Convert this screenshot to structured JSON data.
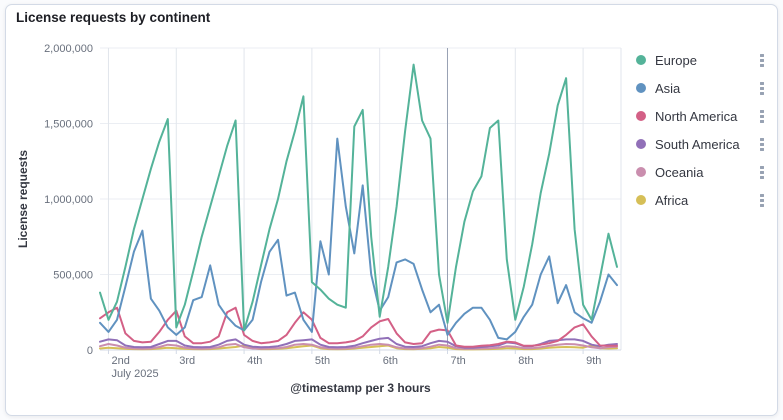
{
  "panel": {
    "title": "License requests by continent"
  },
  "chart_data": {
    "type": "line",
    "title": "License requests by continent",
    "xlabel": "@timestamp per 3 hours",
    "ylabel": "License requests",
    "ylim": [
      0,
      2000000
    ],
    "grid": true,
    "legend_position": "right",
    "bucket_interval": "3 hours",
    "y_ticks": [
      {
        "value": 0,
        "label": "0"
      },
      {
        "value": 500000,
        "label": "500,000"
      },
      {
        "value": 1000000,
        "label": "1,000,000"
      },
      {
        "value": 1500000,
        "label": "1,500,000"
      },
      {
        "value": 2000000,
        "label": "2,000,000"
      }
    ],
    "x_ticks": [
      {
        "index": 1,
        "label": "2nd",
        "sublabel": "July 2025",
        "emphasis": false
      },
      {
        "index": 9,
        "label": "3rd",
        "emphasis": false
      },
      {
        "index": 17,
        "label": "4th",
        "emphasis": false
      },
      {
        "index": 25,
        "label": "5th",
        "emphasis": false
      },
      {
        "index": 33,
        "label": "6th",
        "emphasis": false
      },
      {
        "index": 41,
        "label": "7th",
        "emphasis": true
      },
      {
        "index": 49,
        "label": "8th",
        "emphasis": false
      },
      {
        "index": 57,
        "label": "9th",
        "emphasis": false
      }
    ],
    "series": [
      {
        "name": "Europe",
        "color": "#54B399",
        "values": [
          380000,
          200000,
          320000,
          550000,
          800000,
          1000000,
          1200000,
          1380000,
          1530000,
          150000,
          300000,
          520000,
          750000,
          950000,
          1150000,
          1350000,
          1520000,
          130000,
          320000,
          560000,
          800000,
          1000000,
          1250000,
          1450000,
          1680000,
          450000,
          400000,
          340000,
          300000,
          280000,
          1480000,
          1590000,
          750000,
          220000,
          550000,
          950000,
          1450000,
          1890000,
          1520000,
          1400000,
          500000,
          180000,
          550000,
          850000,
          1050000,
          1150000,
          1470000,
          1520000,
          600000,
          200000,
          420000,
          700000,
          1040000,
          1300000,
          1620000,
          1800000,
          800000,
          300000,
          200000,
          480000,
          770000,
          550000
        ]
      },
      {
        "name": "Asia",
        "color": "#6092C0",
        "values": [
          180000,
          120000,
          200000,
          420000,
          650000,
          790000,
          340000,
          260000,
          150000,
          100000,
          150000,
          330000,
          350000,
          560000,
          300000,
          220000,
          160000,
          130000,
          200000,
          450000,
          650000,
          730000,
          360000,
          380000,
          200000,
          120000,
          720000,
          500000,
          1400000,
          950000,
          640000,
          1090000,
          500000,
          260000,
          350000,
          580000,
          600000,
          570000,
          400000,
          250000,
          300000,
          100000,
          180000,
          240000,
          280000,
          280000,
          200000,
          80000,
          70000,
          120000,
          220000,
          300000,
          500000,
          620000,
          310000,
          430000,
          250000,
          210000,
          180000,
          320000,
          500000,
          430000
        ]
      },
      {
        "name": "North America",
        "color": "#D36086",
        "values": [
          210000,
          250000,
          280000,
          110000,
          60000,
          50000,
          55000,
          120000,
          200000,
          260000,
          90000,
          45000,
          45000,
          55000,
          90000,
          250000,
          280000,
          100000,
          60000,
          45000,
          50000,
          60000,
          100000,
          180000,
          250000,
          200000,
          80000,
          45000,
          45000,
          50000,
          60000,
          90000,
          150000,
          190000,
          205000,
          110000,
          50000,
          40000,
          45000,
          120000,
          135000,
          130000,
          30000,
          22000,
          22000,
          28000,
          32000,
          40000,
          55000,
          50000,
          28000,
          28000,
          35000,
          45000,
          60000,
          100000,
          150000,
          170000,
          90000,
          30000,
          28000,
          28000
        ]
      },
      {
        "name": "South America",
        "color": "#9170B8",
        "values": [
          55000,
          70000,
          65000,
          30000,
          20000,
          18000,
          20000,
          40000,
          60000,
          60000,
          30000,
          20000,
          18000,
          20000,
          35000,
          60000,
          70000,
          35000,
          22000,
          18000,
          20000,
          25000,
          40000,
          60000,
          65000,
          70000,
          35000,
          20000,
          18000,
          20000,
          28000,
          45000,
          60000,
          75000,
          80000,
          40000,
          22000,
          20000,
          25000,
          45000,
          60000,
          55000,
          25000,
          15000,
          15000,
          20000,
          25000,
          30000,
          50000,
          45000,
          25000,
          25000,
          40000,
          60000,
          65000,
          70000,
          70000,
          60000,
          35000,
          25000,
          35000,
          40000
        ]
      },
      {
        "name": "Oceania",
        "color": "#CA8EAE",
        "values": [
          25000,
          40000,
          30000,
          15000,
          10000,
          8000,
          10000,
          20000,
          35000,
          30000,
          15000,
          10000,
          8000,
          10000,
          18000,
          35000,
          40000,
          18000,
          10000,
          8000,
          10000,
          12000,
          20000,
          35000,
          40000,
          35000,
          18000,
          10000,
          8000,
          10000,
          15000,
          25000,
          35000,
          40000,
          35000,
          18000,
          10000,
          8000,
          12000,
          22000,
          35000,
          30000,
          12000,
          8000,
          8000,
          10000,
          12000,
          15000,
          25000,
          22000,
          12000,
          12000,
          18000,
          28000,
          35000,
          40000,
          38000,
          30000,
          18000,
          12000,
          18000,
          22000
        ]
      },
      {
        "name": "Africa",
        "color": "#D6BF57",
        "values": [
          10000,
          15000,
          12000,
          8000,
          6000,
          5000,
          6000,
          10000,
          15000,
          12000,
          8000,
          6000,
          5000,
          6000,
          10000,
          15000,
          20000,
          30000,
          12000,
          6000,
          6000,
          8000,
          12000,
          18000,
          25000,
          30000,
          12000,
          6000,
          5000,
          6000,
          10000,
          15000,
          20000,
          25000,
          30000,
          12000,
          6000,
          5000,
          8000,
          12000,
          20000,
          15000,
          6000,
          4000,
          4000,
          5000,
          6000,
          8000,
          12000,
          10000,
          6000,
          6000,
          10000,
          15000,
          18000,
          20000,
          18000,
          15000,
          30000,
          12000,
          10000,
          12000
        ]
      }
    ]
  },
  "legend": {
    "action_icon": "boxes-vertical-icon"
  },
  "colors": {
    "grid_light": "#EBEEF3",
    "grid_vertical": "#E2E6EC",
    "grid_emphasis": "#98A2B3",
    "axis_line": "#D3DAE6",
    "tick_text": "#69707D",
    "axis_title_text": "#343741"
  }
}
